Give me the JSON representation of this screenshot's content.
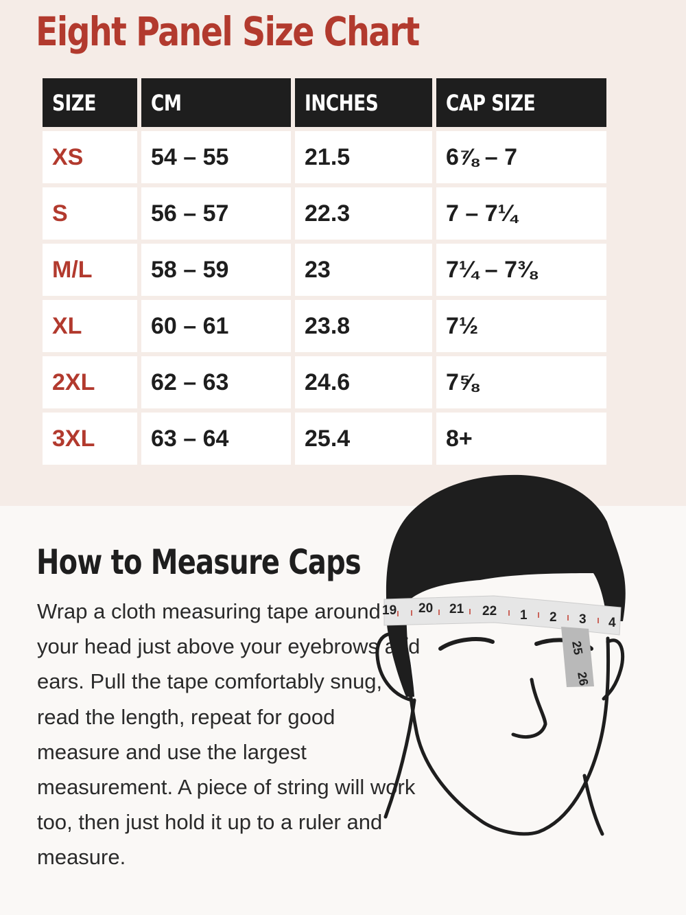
{
  "page": {
    "title": "Eight Panel Size Chart"
  },
  "table": {
    "headers": [
      "SIZE",
      "CM",
      "INCHES",
      "CAP SIZE"
    ],
    "rows": [
      [
        "XS",
        "54 – 55",
        "21.5",
        "6⅞ – 7"
      ],
      [
        "S",
        "56 – 57",
        "22.3",
        "7 – 7¼"
      ],
      [
        "M/L",
        "58 – 59",
        "23",
        "7¼ – 7⅜"
      ],
      [
        "XL",
        "60 – 61",
        "23.8",
        "7½"
      ],
      [
        "2XL",
        "62 – 63",
        "24.6",
        "7⅝"
      ],
      [
        "3XL",
        "63 – 64",
        "25.4",
        "8+"
      ]
    ]
  },
  "measure": {
    "title": "How to Measure Caps",
    "body": "Wrap a cloth measuring tape around your head just above your eyebrows and ears. Pull the tape comfortably snug, read the length, repeat for good measure and use the largest measurement. A piece of string will work too, then just hold it up to a ruler and measure."
  },
  "illustration": {
    "icon": "head-with-measuring-tape-icon",
    "tape_numbers_front": [
      "19",
      "20",
      "21",
      "22",
      "1",
      "2",
      "3",
      "4"
    ],
    "tape_numbers_hanging": [
      "25",
      "26"
    ]
  },
  "colors": {
    "accent": "#b23a2e",
    "header_bg": "#1e1e1e",
    "top_panel_bg": "#f5ece7",
    "bottom_panel_bg": "#faf8f6"
  }
}
